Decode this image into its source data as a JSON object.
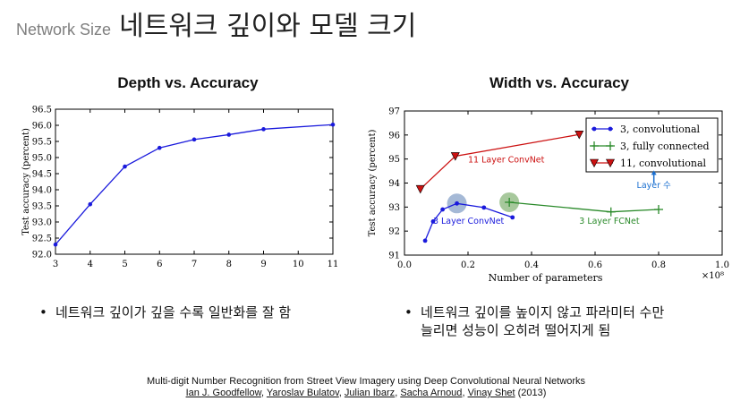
{
  "slide": {
    "title_prefix": "Network Size",
    "title_main": "네트워크 깊이와 모델 크기"
  },
  "left_chart": {
    "heading": "Depth vs. Accuracy"
  },
  "right_chart": {
    "heading": "Width vs. Accuracy"
  },
  "chart_data": [
    {
      "type": "line",
      "title": "Depth vs. Accuracy",
      "xlabel": "",
      "ylabel": "Test accuracy (percent)",
      "xlim": [
        3,
        11
      ],
      "ylim": [
        92.0,
        96.5
      ],
      "x_ticks": [
        "3",
        "4",
        "5",
        "6",
        "7",
        "8",
        "9",
        "10",
        "11"
      ],
      "y_ticks": [
        "92.0",
        "92.5",
        "93.0",
        "93.5",
        "94.0",
        "94.5",
        "95.0",
        "95.5",
        "96.0",
        "96.5"
      ],
      "grid": false,
      "series": [
        {
          "color": "#1a1adc",
          "x": [
            3,
            4,
            5,
            6,
            7,
            8,
            9,
            11
          ],
          "y": [
            92.3,
            93.55,
            94.72,
            95.3,
            95.56,
            95.71,
            95.88,
            96.02
          ]
        }
      ]
    },
    {
      "type": "line",
      "title": "Width vs. Accuracy",
      "xlabel": "Number of parameters",
      "ylabel": "Test accuracy (percent)",
      "xlim": [
        0.0,
        1.0
      ],
      "ylim": [
        91,
        97
      ],
      "x_multiplier": "×10⁸",
      "x_ticks": [
        "0.0",
        "0.2",
        "0.4",
        "0.6",
        "0.8",
        "1.0"
      ],
      "y_ticks": [
        "91",
        "92",
        "93",
        "94",
        "95",
        "96",
        "97"
      ],
      "legend_position": "top-right",
      "series": [
        {
          "name": "3, convolutional",
          "color": "#1a1adc",
          "marker": "dot",
          "x": [
            0.065,
            0.09,
            0.12,
            0.165,
            0.25,
            0.34
          ],
          "y": [
            91.6,
            92.4,
            92.9,
            93.15,
            92.98,
            92.57
          ]
        },
        {
          "name": "3, fully connected",
          "color": "#2a8a2a",
          "marker": "plus",
          "x": [
            0.33,
            0.65,
            0.8
          ],
          "y": [
            93.2,
            92.8,
            92.9
          ]
        },
        {
          "name": "11, convolutional",
          "color": "#cc1111",
          "marker": "triangle-down",
          "x": [
            0.05,
            0.16,
            0.55
          ],
          "y": [
            93.75,
            95.12,
            96.02
          ]
        }
      ],
      "annotations": [
        {
          "text": "11 Layer ConvNet",
          "color": "#cc1111"
        },
        {
          "text": "3 Layer ConvNet",
          "color": "#1a1adc"
        },
        {
          "text": "3 Layer FCNet",
          "color": "#2a8a2a"
        },
        {
          "text": "Layer 수",
          "color": "#1a6fd0"
        }
      ],
      "highlights": [
        {
          "x": 0.165,
          "y": 93.15,
          "color": "#5b7fb4"
        },
        {
          "x": 0.33,
          "y": 93.2,
          "color": "#5f9a4a"
        }
      ]
    }
  ],
  "bullets": {
    "left": "네트워크 깊이가 깊을 수록 일반화를 잘 함",
    "right_line1": "네트워크 깊이를 높이지 않고 파라미터 수만",
    "right_line2": "늘리면 성능이 오히려 떨어지게 됨",
    "dot": "•"
  },
  "citation": {
    "line1": "Multi-digit Number Recognition from Street View Imagery using Deep Convolutional Neural Networks",
    "authors": [
      "Ian J. Goodfellow",
      "Yaroslav Bulatov",
      "Julian Ibarz",
      "Sacha Arnoud",
      "Vinay Shet"
    ],
    "separator": ", ",
    "year": " (2013)"
  }
}
